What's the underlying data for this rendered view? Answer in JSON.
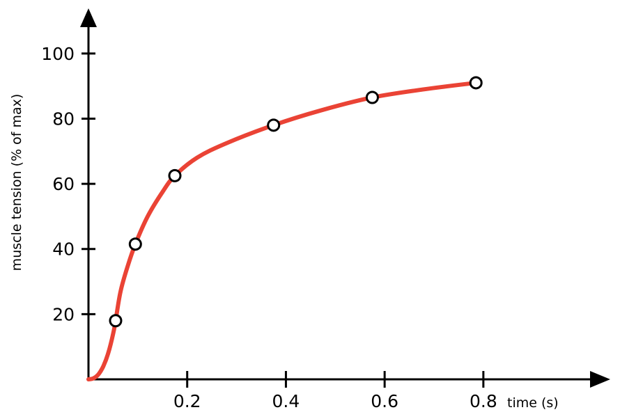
{
  "chart_data": {
    "type": "line",
    "title": "",
    "xlabel": "time (s)",
    "ylabel": "muscle tension (% of max)",
    "xlim": [
      0,
      1.05
    ],
    "ylim": [
      0,
      110
    ],
    "x_ticks": [
      0.2,
      0.4,
      0.6,
      0.8
    ],
    "x_tick_labels": [
      "0.2",
      "0.4",
      "0.6",
      "0.8"
    ],
    "y_ticks": [
      20,
      40,
      60,
      80,
      100
    ],
    "y_tick_labels": [
      "20",
      "40",
      "60",
      "80",
      "100"
    ],
    "grid": false,
    "legend": "none",
    "colors": {
      "curve": "#ea4335",
      "axes": "#000000",
      "marker_fill": "#ffffff"
    },
    "series": [
      {
        "name": "",
        "style": "markers",
        "x": [
          0.055,
          0.095,
          0.175,
          0.375,
          0.575,
          0.785
        ],
        "y": [
          18,
          41.5,
          62.5,
          78,
          86.5,
          91
        ]
      },
      {
        "name": "",
        "style": "smooth-curve",
        "x": [
          0,
          0.01,
          0.02,
          0.03,
          0.04,
          0.05,
          0.055,
          0.065,
          0.08,
          0.095,
          0.12,
          0.15,
          0.175,
          0.22,
          0.28,
          0.375,
          0.47,
          0.575,
          0.68,
          0.785
        ],
        "y": [
          0,
          0.3,
          1.5,
          4,
          8,
          14,
          18,
          27,
          35,
          41.5,
          50,
          57.5,
          62.5,
          68,
          72.5,
          78,
          82.5,
          86.5,
          89,
          91
        ]
      }
    ]
  }
}
